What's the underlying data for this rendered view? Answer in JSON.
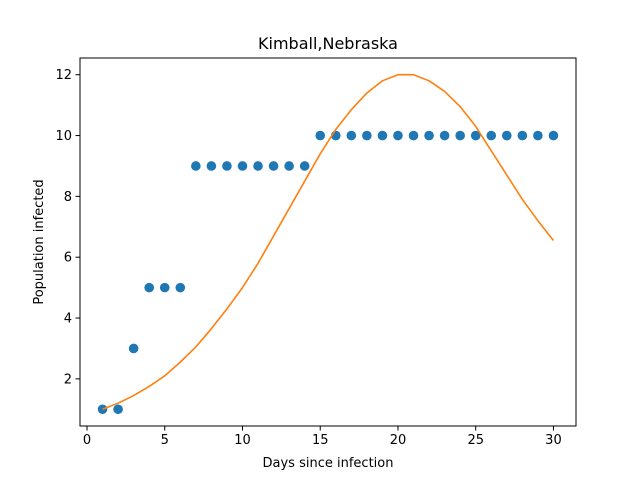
{
  "chart_data": {
    "type": "scatter",
    "title": "Kimball,Nebraska",
    "xlabel": "Days since infection",
    "ylabel": "Population infected",
    "xlim": [
      -0.45,
      31.45
    ],
    "ylim": [
      0.45,
      12.55
    ],
    "xticks": [
      0,
      5,
      10,
      15,
      20,
      25,
      30
    ],
    "yticks": [
      2,
      4,
      6,
      8,
      10,
      12
    ],
    "grid": false,
    "series": [
      {
        "kind": "scatter",
        "color": "#1f77b4",
        "x": [
          1,
          2,
          3,
          4,
          5,
          6,
          7,
          8,
          9,
          10,
          11,
          12,
          13,
          14,
          15,
          16,
          17,
          18,
          19,
          20,
          21,
          22,
          23,
          24,
          25,
          26,
          27,
          28,
          29,
          30
        ],
        "y": [
          1,
          1,
          3,
          5,
          5,
          5,
          9,
          9,
          9,
          9,
          9,
          9,
          9,
          9,
          10,
          10,
          10,
          10,
          10,
          10,
          10,
          10,
          10,
          10,
          10,
          10,
          10,
          10,
          10,
          10
        ]
      },
      {
        "kind": "line",
        "color": "#ff7f0e",
        "x": [
          1,
          2,
          3,
          4,
          5,
          6,
          7,
          8,
          9,
          10,
          11,
          12,
          13,
          14,
          15,
          16,
          17,
          18,
          19,
          20,
          21,
          22,
          23,
          24,
          25,
          26,
          27,
          28,
          29,
          30
        ],
        "y": [
          1.0,
          1.2,
          1.45,
          1.75,
          2.1,
          2.55,
          3.05,
          3.65,
          4.3,
          5.0,
          5.8,
          6.7,
          7.6,
          8.5,
          9.4,
          10.2,
          10.85,
          11.4,
          11.8,
          12.0,
          12.0,
          11.8,
          11.45,
          10.95,
          10.3,
          9.5,
          8.7,
          7.9,
          7.2,
          6.55
        ]
      }
    ]
  }
}
